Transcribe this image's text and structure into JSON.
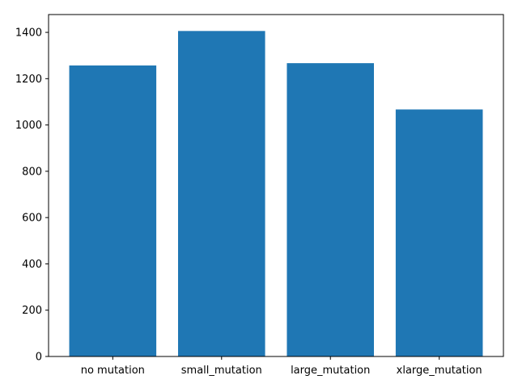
{
  "chart_data": {
    "type": "bar",
    "title": "",
    "xlabel": "",
    "ylabel": "",
    "categories": [
      "no mutation",
      "small_mutation",
      "large_mutation",
      "xlarge_mutation"
    ],
    "values": [
      1257,
      1406,
      1267,
      1067
    ],
    "ylim": [
      0,
      1477
    ],
    "yticks": [
      0,
      200,
      400,
      600,
      800,
      1000,
      1200,
      1400
    ],
    "grid": false,
    "legend": "none",
    "bar_color": "#1f77b4"
  }
}
